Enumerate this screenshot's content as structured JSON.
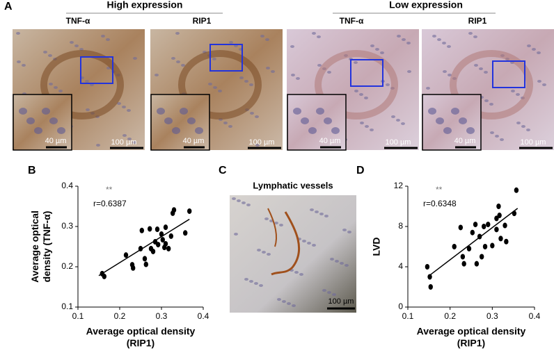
{
  "figure": {
    "panel_a": "A",
    "panel_b": "B",
    "panel_c": "C",
    "panel_d": "D",
    "groups": [
      {
        "title": "High expression",
        "images": [
          {
            "label": "TNF-α",
            "inset_scale": "40 µm",
            "scale": "100 µm"
          },
          {
            "label": "RIP1",
            "inset_scale": "40 µm",
            "scale": "100 µm"
          }
        ]
      },
      {
        "title": "Low expression",
        "images": [
          {
            "label": "TNF-α",
            "inset_scale": "40 µm",
            "scale": "100 µm"
          },
          {
            "label": "RIP1",
            "inset_scale": "40 µm",
            "scale": "100 µm"
          }
        ]
      }
    ],
    "lymph": {
      "title": "Lymphatic vessels",
      "scale": "100 µm"
    }
  },
  "chart_data": [
    {
      "type": "scatter",
      "x_label": [
        "Average optical density",
        "(RIP1)"
      ],
      "y_label": [
        "Average optical",
        "density (TNF-α)"
      ],
      "annotation": "**",
      "r_label": "r=0.6387",
      "color": "#000000",
      "xlim": [
        0.1,
        0.4
      ],
      "xticks": [
        0.1,
        0.2,
        0.3,
        0.4
      ],
      "ylim": [
        0.1,
        0.4
      ],
      "yticks": [
        0.1,
        0.2,
        0.3,
        0.4
      ],
      "x": [
        0.158,
        0.163,
        0.215,
        0.23,
        0.232,
        0.25,
        0.253,
        0.26,
        0.263,
        0.272,
        0.275,
        0.28,
        0.285,
        0.29,
        0.292,
        0.3,
        0.303,
        0.307,
        0.31,
        0.31,
        0.317,
        0.323,
        0.33,
        0.327,
        0.357,
        0.367
      ],
      "values": [
        0.183,
        0.176,
        0.229,
        0.205,
        0.197,
        0.245,
        0.29,
        0.22,
        0.206,
        0.294,
        0.245,
        0.238,
        0.262,
        0.293,
        0.255,
        0.281,
        0.267,
        0.248,
        0.257,
        0.298,
        0.245,
        0.276,
        0.341,
        0.333,
        0.284,
        0.338
      ],
      "fit": {
        "x": [
          0.15,
          0.367
        ],
        "values": [
          0.178,
          0.318
        ]
      }
    },
    {
      "type": "scatter",
      "x_label": [
        "Average optical density",
        "(RIP1)"
      ],
      "y_label": [
        "LVD"
      ],
      "annotation": "**",
      "r_label": "r=0.6348",
      "color": "#000000",
      "xlim": [
        0.1,
        0.4
      ],
      "xticks": [
        0.1,
        0.2,
        0.3,
        0.4
      ],
      "ylim": [
        0,
        12
      ],
      "yticks": [
        0,
        4,
        8,
        12
      ],
      "x": [
        0.146,
        0.152,
        0.154,
        0.21,
        0.225,
        0.23,
        0.233,
        0.245,
        0.253,
        0.26,
        0.263,
        0.27,
        0.275,
        0.28,
        0.283,
        0.29,
        0.3,
        0.31,
        0.31,
        0.315,
        0.317,
        0.32,
        0.33,
        0.333,
        0.352,
        0.357
      ],
      "values": [
        4.0,
        3.0,
        2.0,
        6.0,
        7.9,
        5.0,
        4.3,
        5.8,
        7.4,
        8.2,
        4.3,
        7.0,
        5.0,
        8.0,
        6.0,
        8.2,
        6.1,
        7.7,
        8.8,
        10.0,
        9.1,
        6.8,
        8.1,
        6.5,
        9.3,
        11.6
      ],
      "fit": {
        "x": [
          0.15,
          0.36
        ],
        "values": [
          3.1,
          9.8
        ]
      }
    }
  ]
}
